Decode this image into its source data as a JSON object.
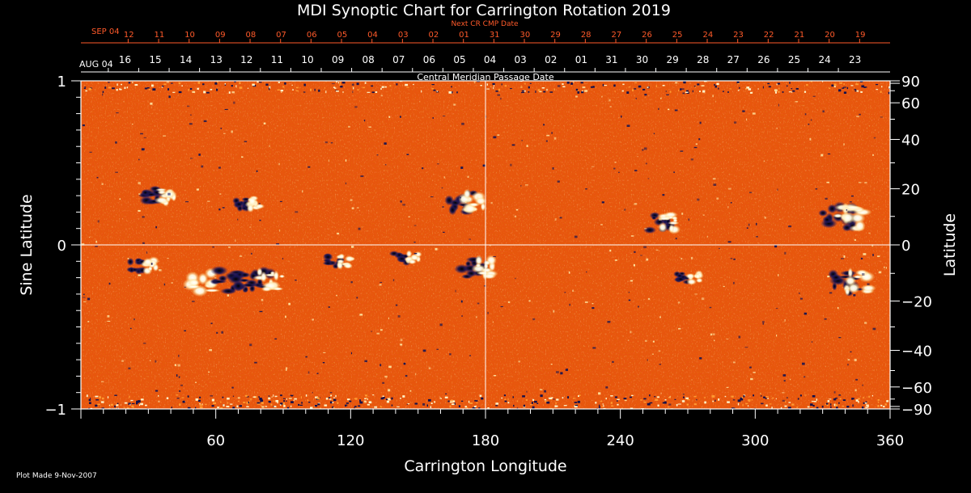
{
  "chart_data": {
    "type": "heatmap",
    "title": "MDI Synoptic Chart for Carrington Rotation 2019",
    "xlabel": "Carrington Longitude",
    "ylabel_left": "Sine Latitude",
    "ylabel_right": "Latitude",
    "xlim": [
      0,
      360
    ],
    "ylim": [
      -1,
      1
    ],
    "x_ticks": [
      60,
      120,
      180,
      240,
      300,
      360
    ],
    "y_ticks_left": [
      {
        "value": 1,
        "label": "1"
      },
      {
        "value": 0,
        "label": "0"
      },
      {
        "value": -1,
        "label": "−1"
      }
    ],
    "y_ticks_right": [
      {
        "deg": 90,
        "label": "90"
      },
      {
        "deg": 60,
        "label": "60"
      },
      {
        "deg": 40,
        "label": "40"
      },
      {
        "deg": 20,
        "label": "20"
      },
      {
        "deg": 0,
        "label": "0"
      },
      {
        "deg": -20,
        "label": "−20"
      },
      {
        "deg": -40,
        "label": "−40"
      },
      {
        "deg": -60,
        "label": "−60"
      },
      {
        "deg": -90,
        "label": "−90"
      }
    ],
    "next_cr_axis": {
      "label": "Next CR CMP Date",
      "month_label": "SEP 04",
      "dates": [
        "12",
        "11",
        "10",
        "09",
        "08",
        "07",
        "06",
        "05",
        "04",
        "03",
        "02",
        "01",
        "31",
        "30",
        "29",
        "28",
        "27",
        "26",
        "25",
        "24",
        "23",
        "22",
        "21",
        "20",
        "19"
      ]
    },
    "cmp_axis": {
      "label": "Central Meridian Passage Date",
      "month_label": "AUG 04",
      "dates": [
        "16",
        "15",
        "14",
        "13",
        "12",
        "11",
        "10",
        "09",
        "08",
        "07",
        "06",
        "05",
        "04",
        "03",
        "02",
        "01",
        "31",
        "30",
        "29",
        "28",
        "27",
        "26",
        "25",
        "24",
        "23"
      ]
    },
    "active_regions": [
      {
        "lon": 35,
        "sinlat": 0.3,
        "polarity": "mixed",
        "strength": 0.7
      },
      {
        "lon": 75,
        "sinlat": 0.25,
        "polarity": "mixed",
        "strength": 0.5
      },
      {
        "lon": 172,
        "sinlat": 0.26,
        "polarity": "mixed",
        "strength": 0.8
      },
      {
        "lon": 260,
        "sinlat": 0.14,
        "polarity": "mixed",
        "strength": 0.7
      },
      {
        "lon": 340,
        "sinlat": 0.16,
        "polarity": "mixed",
        "strength": 1.0
      },
      {
        "lon": 28,
        "sinlat": -0.13,
        "polarity": "mixed",
        "strength": 0.5
      },
      {
        "lon": 50,
        "sinlat": -0.22,
        "polarity": "positive",
        "strength": 0.9
      },
      {
        "lon": 68,
        "sinlat": -0.22,
        "polarity": "negative",
        "strength": 0.9
      },
      {
        "lon": 82,
        "sinlat": -0.22,
        "polarity": "mixed",
        "strength": 0.9
      },
      {
        "lon": 115,
        "sinlat": -0.1,
        "polarity": "mixed",
        "strength": 0.5
      },
      {
        "lon": 145,
        "sinlat": -0.08,
        "polarity": "mixed",
        "strength": 0.4
      },
      {
        "lon": 178,
        "sinlat": -0.14,
        "polarity": "mixed",
        "strength": 0.8
      },
      {
        "lon": 270,
        "sinlat": -0.2,
        "polarity": "mixed",
        "strength": 0.4
      },
      {
        "lon": 343,
        "sinlat": -0.23,
        "polarity": "mixed",
        "strength": 0.9
      }
    ],
    "grid_lines": {
      "x": [
        180
      ],
      "y": [
        0
      ]
    }
  },
  "footer": {
    "plot_made": "Plot Made  9-Nov-2007"
  }
}
